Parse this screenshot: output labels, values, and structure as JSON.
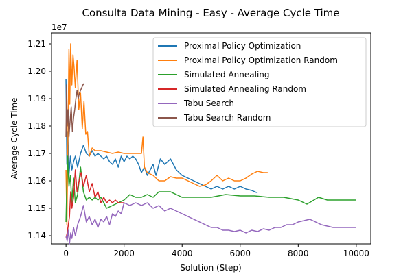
{
  "chart_data": {
    "type": "line",
    "title": "Consulta Data Mining - Easy - Average Cycle Time",
    "xlabel": "Solution (Step)",
    "ylabel": "Average Cycle Time",
    "y_offset_label": "1e7",
    "xlim": [
      -500,
      10500
    ],
    "ylim": [
      11370000,
      12140000
    ],
    "x_ticks": [
      0,
      2000,
      4000,
      6000,
      8000,
      10000
    ],
    "x_tick_labels": [
      "0",
      "2000",
      "4000",
      "6000",
      "8000",
      "10000"
    ],
    "y_ticks": [
      11400000,
      11500000,
      11600000,
      11700000,
      11800000,
      11900000,
      12000000,
      12100000
    ],
    "y_tick_labels": [
      "1.14",
      "1.15",
      "1.16",
      "1.17",
      "1.18",
      "1.19",
      "1.20",
      "1.21"
    ],
    "grid": false,
    "legend_position": "top-right",
    "series": [
      {
        "name": "Proximal Policy Optimization",
        "color": "#1f77b4",
        "points": [
          [
            0,
            11970000
          ],
          [
            30,
            11660000
          ],
          [
            60,
            11780000
          ],
          [
            100,
            11620000
          ],
          [
            150,
            11690000
          ],
          [
            200,
            11640000
          ],
          [
            260,
            11670000
          ],
          [
            320,
            11690000
          ],
          [
            400,
            11650000
          ],
          [
            500,
            11700000
          ],
          [
            600,
            11730000
          ],
          [
            700,
            11700000
          ],
          [
            800,
            11690000
          ],
          [
            900,
            11710000
          ],
          [
            1000,
            11690000
          ],
          [
            1100,
            11700000
          ],
          [
            1200,
            11690000
          ],
          [
            1300,
            11680000
          ],
          [
            1400,
            11690000
          ],
          [
            1500,
            11670000
          ],
          [
            1600,
            11660000
          ],
          [
            1700,
            11680000
          ],
          [
            1800,
            11650000
          ],
          [
            1900,
            11690000
          ],
          [
            2000,
            11670000
          ],
          [
            2100,
            11690000
          ],
          [
            2200,
            11680000
          ],
          [
            2300,
            11690000
          ],
          [
            2400,
            11680000
          ],
          [
            2500,
            11660000
          ],
          [
            2600,
            11630000
          ],
          [
            2700,
            11650000
          ],
          [
            2800,
            11620000
          ],
          [
            3000,
            11660000
          ],
          [
            3100,
            11620000
          ],
          [
            3250,
            11680000
          ],
          [
            3400,
            11660000
          ],
          [
            3600,
            11680000
          ],
          [
            3800,
            11640000
          ],
          [
            4000,
            11620000
          ],
          [
            4200,
            11610000
          ],
          [
            4400,
            11600000
          ],
          [
            4600,
            11590000
          ],
          [
            4800,
            11580000
          ],
          [
            5000,
            11570000
          ],
          [
            5200,
            11580000
          ],
          [
            5400,
            11570000
          ],
          [
            5600,
            11580000
          ],
          [
            5800,
            11570000
          ],
          [
            6000,
            11580000
          ],
          [
            6200,
            11570000
          ],
          [
            6400,
            11565000
          ],
          [
            6550,
            11558000
          ],
          [
            6600,
            11557000
          ]
        ]
      },
      {
        "name": "Proximal Policy Optimization Random",
        "color": "#ff7f0e",
        "points": [
          [
            0,
            11640000
          ],
          [
            30,
            11440000
          ],
          [
            60,
            11700000
          ],
          [
            100,
            12080000
          ],
          [
            130,
            11880000
          ],
          [
            160,
            12100000
          ],
          [
            200,
            11950000
          ],
          [
            240,
            12060000
          ],
          [
            280,
            12010000
          ],
          [
            320,
            11940000
          ],
          [
            380,
            12040000
          ],
          [
            440,
            11860000
          ],
          [
            500,
            11920000
          ],
          [
            560,
            11790000
          ],
          [
            620,
            11890000
          ],
          [
            680,
            11770000
          ],
          [
            740,
            11780000
          ],
          [
            800,
            11690000
          ],
          [
            900,
            11720000
          ],
          [
            1000,
            11710000
          ],
          [
            1200,
            11710000
          ],
          [
            1400,
            11705000
          ],
          [
            1600,
            11700000
          ],
          [
            1800,
            11705000
          ],
          [
            2000,
            11700000
          ],
          [
            2200,
            11700000
          ],
          [
            2400,
            11700000
          ],
          [
            2600,
            11700000
          ],
          [
            2650,
            11760000
          ],
          [
            2700,
            11650000
          ],
          [
            2800,
            11630000
          ],
          [
            3000,
            11620000
          ],
          [
            3200,
            11600000
          ],
          [
            3400,
            11600000
          ],
          [
            3600,
            11615000
          ],
          [
            3800,
            11610000
          ],
          [
            4000,
            11610000
          ],
          [
            4200,
            11600000
          ],
          [
            4400,
            11590000
          ],
          [
            4600,
            11580000
          ],
          [
            4800,
            11585000
          ],
          [
            5000,
            11600000
          ],
          [
            5200,
            11620000
          ],
          [
            5400,
            11600000
          ],
          [
            5600,
            11610000
          ],
          [
            5800,
            11600000
          ],
          [
            6000,
            11600000
          ],
          [
            6200,
            11610000
          ],
          [
            6400,
            11625000
          ],
          [
            6600,
            11635000
          ],
          [
            6800,
            11630000
          ],
          [
            6950,
            11630000
          ]
        ]
      },
      {
        "name": "Simulated Annealing",
        "color": "#2ca02c",
        "points": [
          [
            0,
            11450000
          ],
          [
            50,
            11690000
          ],
          [
            100,
            11580000
          ],
          [
            150,
            11620000
          ],
          [
            200,
            11520000
          ],
          [
            260,
            11610000
          ],
          [
            320,
            11520000
          ],
          [
            400,
            11550000
          ],
          [
            500,
            11650000
          ],
          [
            600,
            11560000
          ],
          [
            700,
            11530000
          ],
          [
            800,
            11540000
          ],
          [
            900,
            11530000
          ],
          [
            1000,
            11540000
          ],
          [
            1100,
            11530000
          ],
          [
            1200,
            11540000
          ],
          [
            1400,
            11500000
          ],
          [
            1600,
            11510000
          ],
          [
            1800,
            11520000
          ],
          [
            2000,
            11530000
          ],
          [
            2200,
            11550000
          ],
          [
            2400,
            11540000
          ],
          [
            2600,
            11540000
          ],
          [
            2800,
            11550000
          ],
          [
            3000,
            11540000
          ],
          [
            3200,
            11560000
          ],
          [
            3400,
            11560000
          ],
          [
            3600,
            11560000
          ],
          [
            3800,
            11550000
          ],
          [
            4000,
            11540000
          ],
          [
            4500,
            11540000
          ],
          [
            5000,
            11540000
          ],
          [
            5500,
            11550000
          ],
          [
            6000,
            11545000
          ],
          [
            6500,
            11545000
          ],
          [
            7000,
            11540000
          ],
          [
            7500,
            11540000
          ],
          [
            8000,
            11530000
          ],
          [
            8300,
            11515000
          ],
          [
            8700,
            11540000
          ],
          [
            9000,
            11530000
          ],
          [
            9500,
            11530000
          ],
          [
            10000,
            11530000
          ]
        ]
      },
      {
        "name": "Simulated Annealing Random",
        "color": "#d62728",
        "points": [
          [
            0,
            11390000
          ],
          [
            40,
            11410000
          ],
          [
            80,
            11440000
          ],
          [
            120,
            11470000
          ],
          [
            160,
            11560000
          ],
          [
            200,
            11500000
          ],
          [
            260,
            11540000
          ],
          [
            320,
            11640000
          ],
          [
            380,
            11560000
          ],
          [
            450,
            11600000
          ],
          [
            520,
            11630000
          ],
          [
            600,
            11580000
          ],
          [
            700,
            11620000
          ],
          [
            800,
            11560000
          ],
          [
            900,
            11590000
          ],
          [
            1000,
            11540000
          ],
          [
            1100,
            11560000
          ],
          [
            1200,
            11520000
          ],
          [
            1300,
            11540000
          ],
          [
            1400,
            11520000
          ],
          [
            1500,
            11530000
          ],
          [
            1600,
            11520000
          ],
          [
            1700,
            11530000
          ],
          [
            1800,
            11520000
          ],
          [
            1900,
            11520000
          ],
          [
            2000,
            11520000
          ]
        ]
      },
      {
        "name": "Tabu Search",
        "color": "#9467bd",
        "points": [
          [
            0,
            11400000
          ],
          [
            40,
            11380000
          ],
          [
            80,
            11420000
          ],
          [
            120,
            11370000
          ],
          [
            160,
            11410000
          ],
          [
            200,
            11390000
          ],
          [
            260,
            11430000
          ],
          [
            320,
            11400000
          ],
          [
            400,
            11440000
          ],
          [
            500,
            11470000
          ],
          [
            600,
            11510000
          ],
          [
            700,
            11450000
          ],
          [
            800,
            11470000
          ],
          [
            900,
            11440000
          ],
          [
            1000,
            11460000
          ],
          [
            1100,
            11430000
          ],
          [
            1200,
            11460000
          ],
          [
            1300,
            11450000
          ],
          [
            1400,
            11470000
          ],
          [
            1500,
            11440000
          ],
          [
            1600,
            11480000
          ],
          [
            1700,
            11470000
          ],
          [
            1800,
            11490000
          ],
          [
            1900,
            11480000
          ],
          [
            2000,
            11520000
          ],
          [
            2200,
            11510000
          ],
          [
            2400,
            11520000
          ],
          [
            2600,
            11510000
          ],
          [
            2800,
            11520000
          ],
          [
            3000,
            11500000
          ],
          [
            3200,
            11510000
          ],
          [
            3400,
            11490000
          ],
          [
            3600,
            11500000
          ],
          [
            3800,
            11490000
          ],
          [
            4000,
            11480000
          ],
          [
            4200,
            11470000
          ],
          [
            4400,
            11460000
          ],
          [
            4600,
            11450000
          ],
          [
            4800,
            11440000
          ],
          [
            5000,
            11430000
          ],
          [
            5200,
            11430000
          ],
          [
            5400,
            11420000
          ],
          [
            5600,
            11420000
          ],
          [
            5800,
            11415000
          ],
          [
            6000,
            11420000
          ],
          [
            6200,
            11410000
          ],
          [
            6400,
            11420000
          ],
          [
            6600,
            11415000
          ],
          [
            6800,
            11425000
          ],
          [
            7000,
            11420000
          ],
          [
            7200,
            11430000
          ],
          [
            7400,
            11430000
          ],
          [
            7600,
            11440000
          ],
          [
            7800,
            11440000
          ],
          [
            8000,
            11450000
          ],
          [
            8200,
            11455000
          ],
          [
            8400,
            11460000
          ],
          [
            8600,
            11450000
          ],
          [
            8800,
            11440000
          ],
          [
            9000,
            11435000
          ],
          [
            9200,
            11430000
          ],
          [
            9400,
            11430000
          ],
          [
            9600,
            11430000
          ],
          [
            9800,
            11430000
          ],
          [
            10000,
            11430000
          ]
        ]
      },
      {
        "name": "Tabu Search Random",
        "color": "#8c564b",
        "points": [
          [
            0,
            11760000
          ],
          [
            20,
            11950000
          ],
          [
            40,
            11800000
          ],
          [
            70,
            11860000
          ],
          [
            100,
            11760000
          ],
          [
            140,
            11820000
          ],
          [
            180,
            11870000
          ],
          [
            220,
            11780000
          ],
          [
            260,
            11830000
          ],
          [
            300,
            11860000
          ],
          [
            340,
            11900000
          ],
          [
            380,
            11930000
          ],
          [
            420,
            11900000
          ],
          [
            460,
            11920000
          ],
          [
            500,
            11930000
          ],
          [
            540,
            11940000
          ],
          [
            580,
            11950000
          ],
          [
            620,
            11955000
          ]
        ]
      }
    ]
  }
}
